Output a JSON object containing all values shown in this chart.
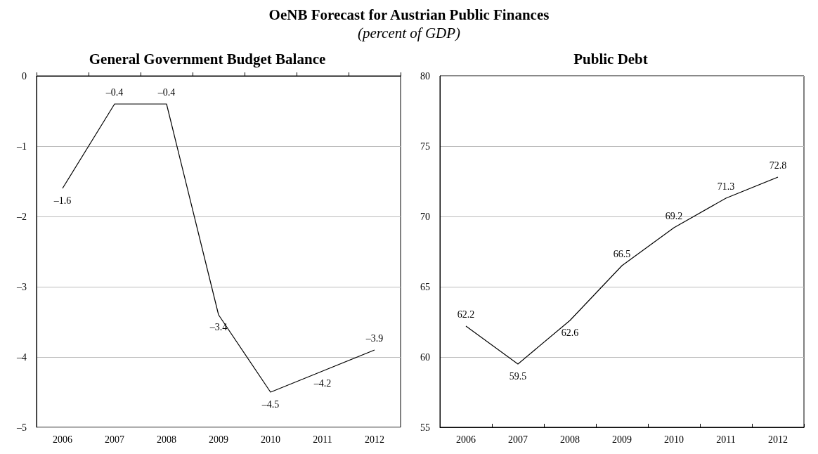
{
  "chart_data": [
    {
      "type": "line",
      "title": "General Government Budget Balance",
      "annotations": [
        "OeNB Forecast for Austrian Public Finances",
        "(percent of GDP)"
      ],
      "categories": [
        "2006",
        "2007",
        "2008",
        "2009",
        "2010",
        "2011",
        "2012"
      ],
      "series": [
        {
          "color": "#000000",
          "values": [
            -1.6,
            -0.4,
            -0.4,
            -3.4,
            -4.5,
            -4.2,
            -3.9
          ],
          "value_labels": [
            "–1.6",
            "–0.4",
            "–0.4",
            "–3.4",
            "–4.5",
            "–4.2",
            "–3.9"
          ]
        }
      ],
      "ylim": [
        -5,
        0
      ],
      "yticks": [
        {
          "value": -5,
          "label": "–5"
        },
        {
          "value": -4,
          "label": "–4"
        },
        {
          "value": -3,
          "label": "–3"
        },
        {
          "value": -2,
          "label": "–2"
        },
        {
          "value": -1,
          "label": "–1"
        },
        0
      ],
      "grid": "y",
      "marker": "none",
      "line_style": "solid"
    },
    {
      "type": "line",
      "title": "Public Debt",
      "categories": [
        "2006",
        "2007",
        "2008",
        "2009",
        "2010",
        "2011",
        "2012"
      ],
      "series": [
        {
          "color": "#000000",
          "values": [
            62.2,
            59.5,
            62.6,
            66.5,
            69.2,
            71.3,
            72.8
          ]
        }
      ],
      "ylim": [
        55,
        80
      ],
      "yticks": [
        55,
        60,
        65,
        70,
        75,
        80
      ],
      "grid": "y",
      "marker": "none",
      "line_style": "solid",
      "data_labels": true
    }
  ]
}
